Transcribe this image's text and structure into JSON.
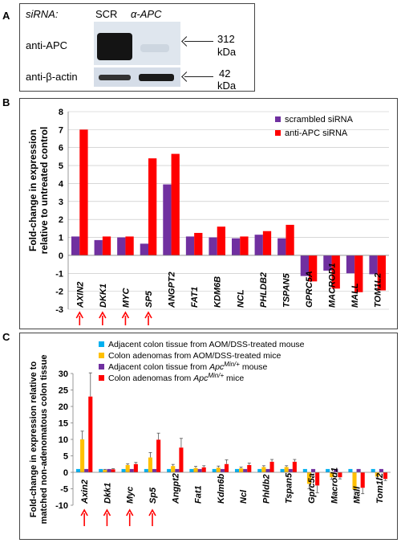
{
  "panel_a": {
    "letter": "A",
    "header_label": "siRNA:",
    "lane_labels": [
      "SCR",
      "α-APC"
    ],
    "rows": [
      {
        "label": "anti-APC",
        "size": "312",
        "unit": "kDa"
      },
      {
        "label": "anti-β-actin",
        "size": "42",
        "unit": "kDa"
      }
    ]
  },
  "panel_b": {
    "letter": "B"
  },
  "panel_c": {
    "letter": "C"
  },
  "chart_data": [
    {
      "type": "bar",
      "ylabel_lines": [
        "Fold-change in expression",
        "relative to untreated control"
      ],
      "ylim": [
        -3,
        8
      ],
      "yticks": [
        -3,
        -2,
        -1,
        0,
        1,
        2,
        3,
        4,
        5,
        6,
        7,
        8
      ],
      "categories": [
        "AXIN2",
        "DKK1",
        "MYC",
        "SP5",
        "ANGPT2",
        "FAT1",
        "KDM6B",
        "NCL",
        "PHLDB2",
        "TSPAN5",
        "GPRC5A",
        "MACROD1",
        "MALL",
        "TOM1L2"
      ],
      "arrow_marked": [
        "AXIN2",
        "DKK1",
        "MYC",
        "SP5"
      ],
      "colors": {
        "scrambled": "#7030a0",
        "apc": "#ff0000"
      },
      "series": [
        {
          "name": "scrambled siRNA",
          "values": [
            1.05,
            0.85,
            1.0,
            0.65,
            3.95,
            1.05,
            1.0,
            0.95,
            1.15,
            0.95,
            -1.15,
            -0.85,
            -1.0,
            -1.05
          ]
        },
        {
          "name": "anti-APC siRNA",
          "values": [
            7.0,
            1.05,
            1.05,
            5.4,
            5.65,
            1.25,
            1.6,
            1.05,
            1.35,
            1.7,
            -1.45,
            -1.85,
            -2.05,
            -1.95
          ]
        }
      ],
      "grid": true,
      "legend_position": "top-right"
    },
    {
      "type": "bar",
      "ylabel_lines": [
        "Fold-change in expression relative to",
        "matched non-adenomatous  colon tissue"
      ],
      "ylim": [
        -10,
        30
      ],
      "yticks": [
        -10,
        -5,
        0,
        5,
        10,
        15,
        20,
        25,
        30
      ],
      "categories": [
        "Axin2",
        "Dkk1",
        "Myc",
        "Sp5",
        "Angpt2",
        "Fat1",
        "Kdm6b",
        "Ncl",
        "Phldb2",
        "Tspan5",
        "Gprc5a",
        "Macrod1",
        "Mall",
        "Tom1l2"
      ],
      "arrow_marked": [
        "Axin2",
        "Dkk1",
        "Myc",
        "Sp5"
      ],
      "colors": [
        "#00b0f0",
        "#ffc000",
        "#7030a0",
        "#ff0000"
      ],
      "series": [
        {
          "name_parts": [
            {
              "t": "Adjacent colon tissue from AOM/DSS-treated mouse"
            }
          ],
          "values": [
            1,
            1,
            1,
            1,
            1,
            1,
            1,
            1,
            1,
            1,
            1,
            1,
            1,
            1
          ],
          "errors": [
            0,
            0,
            0,
            0,
            0,
            0,
            0,
            0,
            0,
            0,
            0,
            0,
            0,
            0
          ]
        },
        {
          "name_parts": [
            {
              "t": "Colon adenomas  from AOM/DSS-treated mice"
            }
          ],
          "values": [
            10,
            0.7,
            2.2,
            4.5,
            1.9,
            1.3,
            1.4,
            1.2,
            1.6,
            1.6,
            -3.5,
            -1.5,
            -5.2,
            -1.3
          ],
          "errors": [
            2.5,
            0.2,
            0.4,
            1.5,
            0.5,
            0.5,
            0.5,
            0.4,
            0.4,
            0.4,
            1.5,
            0.6,
            2.8,
            0.4
          ]
        },
        {
          "name_parts": [
            {
              "t": "Adjacent colon tissue from "
            },
            {
              "t": "Apc",
              "i": true
            },
            {
              "t": "Min/+",
              "i": true,
              "sup": true
            },
            {
              "t": " mouse"
            }
          ],
          "values": [
            1,
            1,
            1,
            1,
            1,
            1,
            1,
            1,
            1,
            1,
            1,
            1,
            1,
            1
          ],
          "errors": [
            0,
            0,
            0,
            0,
            0,
            0,
            0,
            0,
            0,
            0,
            0,
            0,
            0,
            0
          ]
        },
        {
          "name_parts": [
            {
              "t": "Colon adenomas from "
            },
            {
              "t": "Apc",
              "i": true
            },
            {
              "t": "Min/+",
              "i": true,
              "sup": true
            },
            {
              "t": " mice"
            }
          ],
          "values": [
            23,
            0.9,
            2.5,
            9.9,
            7.5,
            1.5,
            2.5,
            2.2,
            3.2,
            3.2,
            -4.0,
            -1.5,
            -4.7,
            -2.0
          ],
          "errors": [
            7.2,
            0.2,
            0.5,
            2.0,
            2.8,
            0.5,
            1.3,
            0.6,
            0.7,
            0.7,
            2.2,
            0.5,
            1.8,
            0.5
          ]
        }
      ],
      "grid": false,
      "legend_position": "top-right"
    }
  ]
}
